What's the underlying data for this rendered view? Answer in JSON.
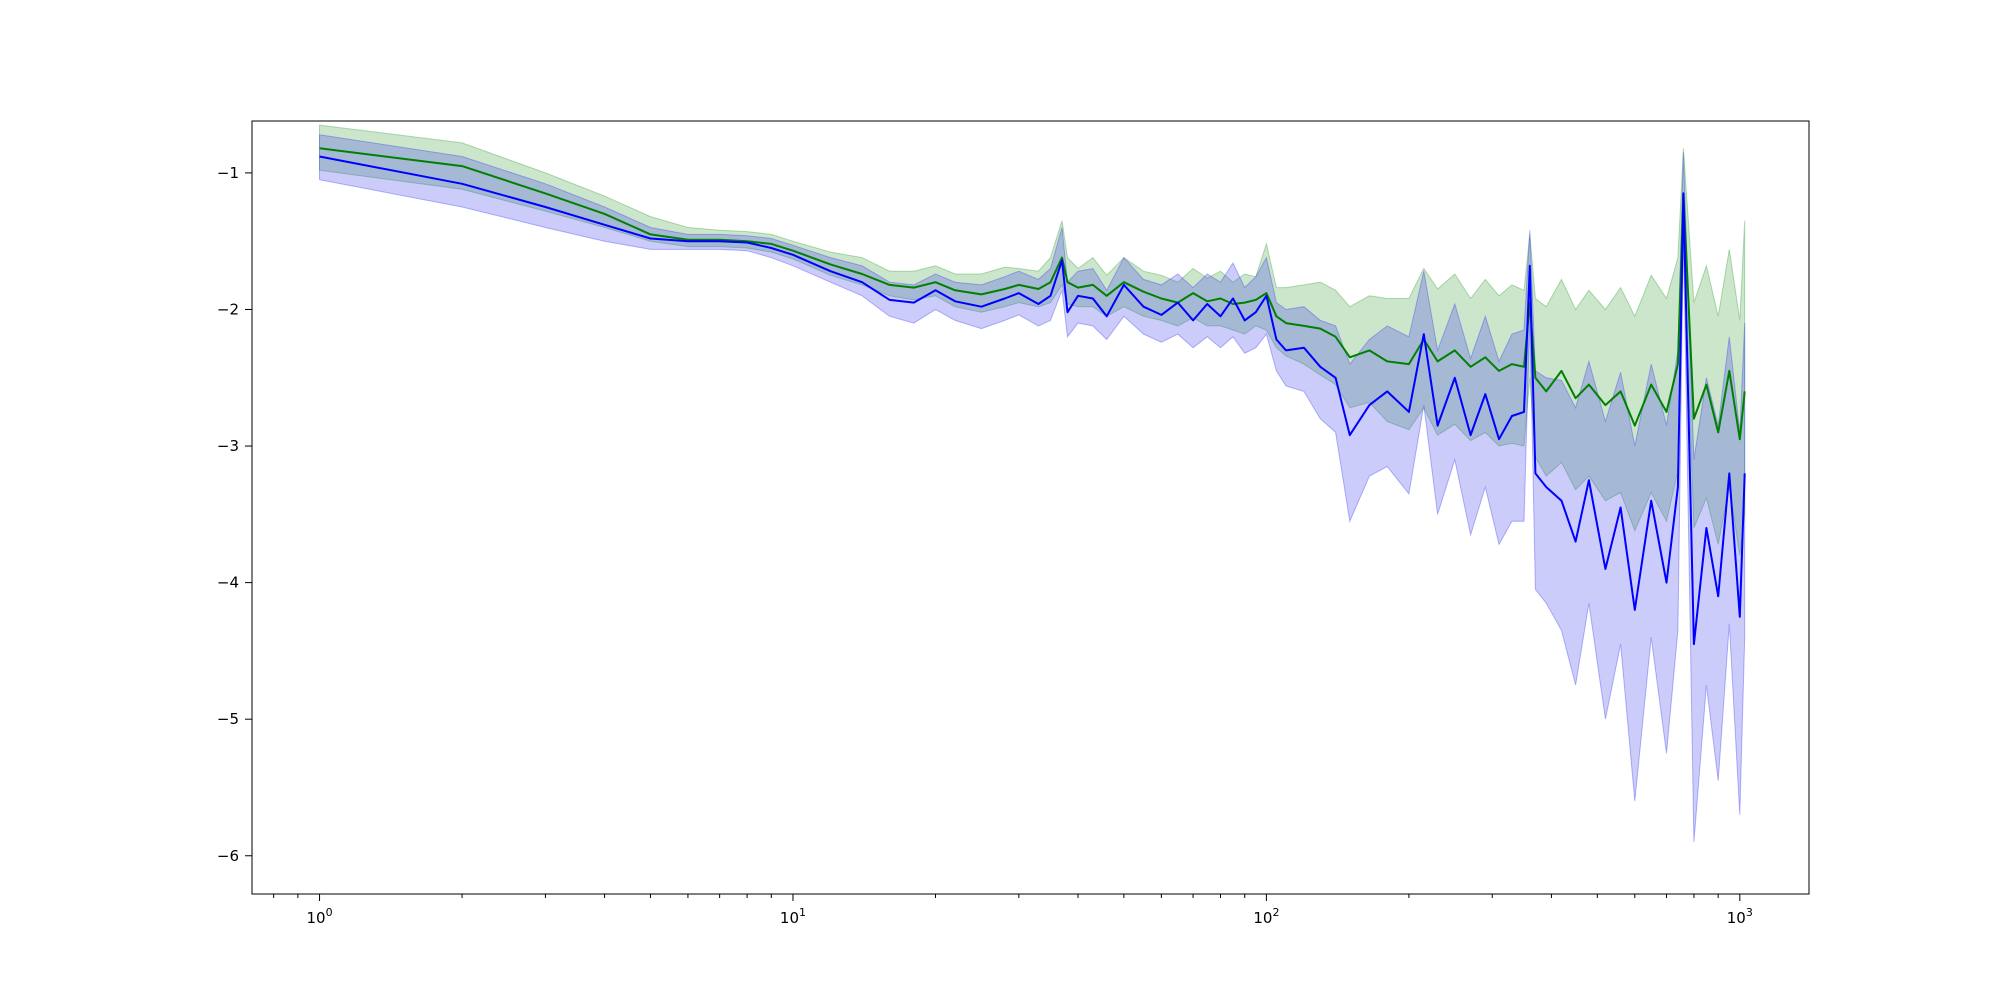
{
  "chart_data": {
    "type": "line",
    "title": "",
    "xlabel": "",
    "ylabel": "",
    "xscale": "log",
    "xlim": [
      0.72,
      1400
    ],
    "ylim": [
      -6.28,
      -0.62
    ],
    "grid": false,
    "legend": "none",
    "x_major_ticks": [
      1,
      10,
      100,
      1000
    ],
    "x_tick_labels": [
      {
        "base": "10",
        "exp": "0"
      },
      {
        "base": "10",
        "exp": "1"
      },
      {
        "base": "10",
        "exp": "2"
      },
      {
        "base": "10",
        "exp": "3"
      }
    ],
    "y_ticks": [
      -1,
      -2,
      -3,
      -4,
      -5,
      -6
    ],
    "y_tick_labels": [
      "−1",
      "−2",
      "−3",
      "−4",
      "−5",
      "−6"
    ],
    "series": [
      {
        "color": "#008000",
        "band_color": "#2e9a2e",
        "band_opacity": 0.25,
        "x": [
          1,
          2,
          3,
          4,
          5,
          6,
          7,
          8,
          9,
          10,
          12,
          14,
          16,
          18,
          20,
          22,
          25,
          28,
          30,
          33,
          35,
          37,
          38,
          40,
          43,
          46,
          50,
          55,
          60,
          65,
          70,
          75,
          80,
          85,
          90,
          95,
          100,
          105,
          110,
          120,
          130,
          140,
          150,
          165,
          180,
          200,
          215,
          230,
          250,
          270,
          290,
          310,
          330,
          350,
          360,
          370,
          390,
          420,
          450,
          480,
          520,
          560,
          600,
          650,
          700,
          740,
          760,
          800,
          850,
          900,
          950,
          1000,
          1024
        ],
        "mean": [
          -0.82,
          -0.95,
          -1.15,
          -1.3,
          -1.45,
          -1.49,
          -1.49,
          -1.5,
          -1.52,
          -1.57,
          -1.67,
          -1.74,
          -1.82,
          -1.84,
          -1.8,
          -1.86,
          -1.89,
          -1.85,
          -1.82,
          -1.85,
          -1.8,
          -1.62,
          -1.8,
          -1.84,
          -1.82,
          -1.9,
          -1.8,
          -1.87,
          -1.92,
          -1.95,
          -1.88,
          -1.94,
          -1.92,
          -1.96,
          -1.95,
          -1.93,
          -1.88,
          -2.05,
          -2.1,
          -2.12,
          -2.14,
          -2.2,
          -2.35,
          -2.3,
          -2.38,
          -2.4,
          -2.22,
          -2.38,
          -2.3,
          -2.42,
          -2.35,
          -2.45,
          -2.4,
          -2.42,
          -1.95,
          -2.5,
          -2.6,
          -2.45,
          -2.65,
          -2.55,
          -2.7,
          -2.6,
          -2.85,
          -2.55,
          -2.75,
          -2.4,
          -1.15,
          -2.8,
          -2.55,
          -2.9,
          -2.45,
          -2.95,
          -2.6
        ],
        "upper": [
          -0.65,
          -0.78,
          -1.0,
          -1.17,
          -1.32,
          -1.4,
          -1.42,
          -1.43,
          -1.45,
          -1.5,
          -1.58,
          -1.62,
          -1.72,
          -1.72,
          -1.68,
          -1.74,
          -1.74,
          -1.69,
          -1.7,
          -1.72,
          -1.62,
          -1.35,
          -1.62,
          -1.7,
          -1.62,
          -1.75,
          -1.62,
          -1.72,
          -1.75,
          -1.8,
          -1.7,
          -1.77,
          -1.72,
          -1.8,
          -1.74,
          -1.76,
          -1.52,
          -1.84,
          -1.84,
          -1.82,
          -1.8,
          -1.86,
          -1.98,
          -1.9,
          -1.92,
          -1.92,
          -1.7,
          -1.85,
          -1.74,
          -1.92,
          -1.78,
          -1.9,
          -1.82,
          -1.86,
          -1.45,
          -1.92,
          -1.98,
          -1.78,
          -2.0,
          -1.86,
          -2.0,
          -1.84,
          -2.05,
          -1.75,
          -1.92,
          -1.62,
          -0.82,
          -1.95,
          -1.68,
          -2.05,
          -1.56,
          -2.08,
          -1.35
        ],
        "lower": [
          -0.98,
          -1.12,
          -1.28,
          -1.4,
          -1.5,
          -1.54,
          -1.54,
          -1.55,
          -1.58,
          -1.63,
          -1.75,
          -1.82,
          -1.9,
          -1.93,
          -1.9,
          -1.98,
          -2.02,
          -1.98,
          -1.95,
          -1.98,
          -1.95,
          -1.82,
          -1.96,
          -1.98,
          -1.98,
          -2.05,
          -1.98,
          -2.05,
          -2.08,
          -2.12,
          -2.06,
          -2.12,
          -2.12,
          -2.15,
          -2.18,
          -2.12,
          -2.15,
          -2.28,
          -2.34,
          -2.4,
          -2.48,
          -2.55,
          -2.72,
          -2.68,
          -2.82,
          -2.88,
          -2.72,
          -2.92,
          -2.84,
          -2.96,
          -2.9,
          -3.0,
          -2.98,
          -3.0,
          -2.5,
          -3.08,
          -3.22,
          -3.12,
          -3.32,
          -3.22,
          -3.4,
          -3.34,
          -3.62,
          -3.34,
          -3.55,
          -3.18,
          -1.48,
          -3.6,
          -3.38,
          -3.72,
          -3.3,
          -3.8,
          -3.5
        ]
      },
      {
        "color": "#0000ff",
        "band_color": "#3333ee",
        "band_opacity": 0.25,
        "x": [
          1,
          2,
          3,
          4,
          5,
          6,
          7,
          8,
          9,
          10,
          12,
          14,
          16,
          18,
          20,
          22,
          25,
          28,
          30,
          33,
          35,
          37,
          38,
          40,
          43,
          46,
          50,
          55,
          60,
          65,
          70,
          75,
          80,
          85,
          90,
          95,
          100,
          105,
          110,
          120,
          130,
          140,
          150,
          165,
          180,
          200,
          215,
          230,
          250,
          270,
          290,
          310,
          330,
          350,
          360,
          370,
          390,
          420,
          450,
          480,
          520,
          560,
          600,
          650,
          700,
          740,
          760,
          800,
          850,
          900,
          950,
          1000,
          1024
        ],
        "mean": [
          -0.88,
          -1.08,
          -1.25,
          -1.38,
          -1.48,
          -1.5,
          -1.5,
          -1.51,
          -1.55,
          -1.6,
          -1.72,
          -1.8,
          -1.93,
          -1.95,
          -1.86,
          -1.94,
          -1.98,
          -1.92,
          -1.88,
          -1.96,
          -1.9,
          -1.64,
          -2.02,
          -1.9,
          -1.92,
          -2.05,
          -1.82,
          -1.98,
          -2.04,
          -1.95,
          -2.08,
          -1.96,
          -2.05,
          -1.92,
          -2.08,
          -2.02,
          -1.9,
          -2.22,
          -2.3,
          -2.28,
          -2.42,
          -2.5,
          -2.92,
          -2.7,
          -2.6,
          -2.75,
          -2.18,
          -2.85,
          -2.5,
          -2.92,
          -2.62,
          -2.95,
          -2.78,
          -2.75,
          -1.68,
          -3.2,
          -3.3,
          -3.4,
          -3.7,
          -3.25,
          -3.9,
          -3.45,
          -4.2,
          -3.4,
          -4.0,
          -3.3,
          -1.15,
          -4.45,
          -3.6,
          -4.1,
          -3.2,
          -4.25,
          -3.2
        ],
        "upper": [
          -0.72,
          -0.88,
          -1.08,
          -1.25,
          -1.4,
          -1.45,
          -1.45,
          -1.46,
          -1.48,
          -1.53,
          -1.62,
          -1.68,
          -1.8,
          -1.82,
          -1.74,
          -1.8,
          -1.82,
          -1.76,
          -1.72,
          -1.78,
          -1.7,
          -1.4,
          -1.8,
          -1.72,
          -1.7,
          -1.86,
          -1.62,
          -1.78,
          -1.82,
          -1.74,
          -1.84,
          -1.74,
          -1.8,
          -1.66,
          -1.84,
          -1.76,
          -1.62,
          -1.95,
          -2.0,
          -1.98,
          -2.08,
          -2.12,
          -2.4,
          -2.22,
          -2.12,
          -2.2,
          -1.72,
          -2.3,
          -1.96,
          -2.36,
          -2.05,
          -2.38,
          -2.18,
          -2.15,
          -1.42,
          -2.45,
          -2.5,
          -2.52,
          -2.72,
          -2.38,
          -2.82,
          -2.46,
          -3.0,
          -2.4,
          -2.85,
          -2.3,
          -0.85,
          -3.1,
          -2.5,
          -2.85,
          -2.2,
          -2.9,
          -2.1
        ],
        "lower": [
          -1.05,
          -1.25,
          -1.4,
          -1.5,
          -1.56,
          -1.56,
          -1.56,
          -1.57,
          -1.62,
          -1.68,
          -1.8,
          -1.9,
          -2.05,
          -2.1,
          -2.0,
          -2.08,
          -2.14,
          -2.08,
          -2.04,
          -2.12,
          -2.08,
          -1.86,
          -2.2,
          -2.1,
          -2.12,
          -2.22,
          -2.05,
          -2.18,
          -2.24,
          -2.18,
          -2.28,
          -2.2,
          -2.28,
          -2.2,
          -2.32,
          -2.28,
          -2.18,
          -2.45,
          -2.56,
          -2.6,
          -2.8,
          -2.9,
          -3.55,
          -3.22,
          -3.15,
          -3.35,
          -2.7,
          -3.5,
          -3.1,
          -3.65,
          -3.3,
          -3.72,
          -3.55,
          -3.55,
          -2.05,
          -4.05,
          -4.15,
          -4.35,
          -4.75,
          -4.15,
          -5.0,
          -4.45,
          -5.6,
          -4.4,
          -5.25,
          -4.35,
          -1.45,
          -5.9,
          -4.75,
          -5.45,
          -4.3,
          -5.7,
          -4.4
        ]
      }
    ]
  }
}
